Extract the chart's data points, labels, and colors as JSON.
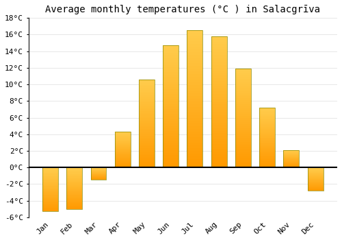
{
  "title": "Average monthly temperatures (°C ) in Salacgrīva",
  "months": [
    "Jan",
    "Feb",
    "Mar",
    "Apr",
    "May",
    "Jun",
    "Jul",
    "Aug",
    "Sep",
    "Oct",
    "Nov",
    "Dec"
  ],
  "values": [
    -5.3,
    -5.0,
    -1.5,
    4.3,
    10.6,
    14.7,
    16.5,
    15.8,
    11.9,
    7.2,
    2.1,
    -2.8
  ],
  "bar_color_top": "#FFCC44",
  "bar_color_bottom": "#FF9900",
  "bar_edge_color": "#888800",
  "background_color": "#FFFFFF",
  "grid_color": "#DDDDDD",
  "spine_color": "#333333",
  "ylim": [
    -6,
    18
  ],
  "yticks": [
    -6,
    -4,
    -2,
    0,
    2,
    4,
    6,
    8,
    10,
    12,
    14,
    16,
    18
  ],
  "tick_label_suffix": "°C",
  "title_fontsize": 10,
  "tick_fontsize": 8,
  "bar_width": 0.65
}
